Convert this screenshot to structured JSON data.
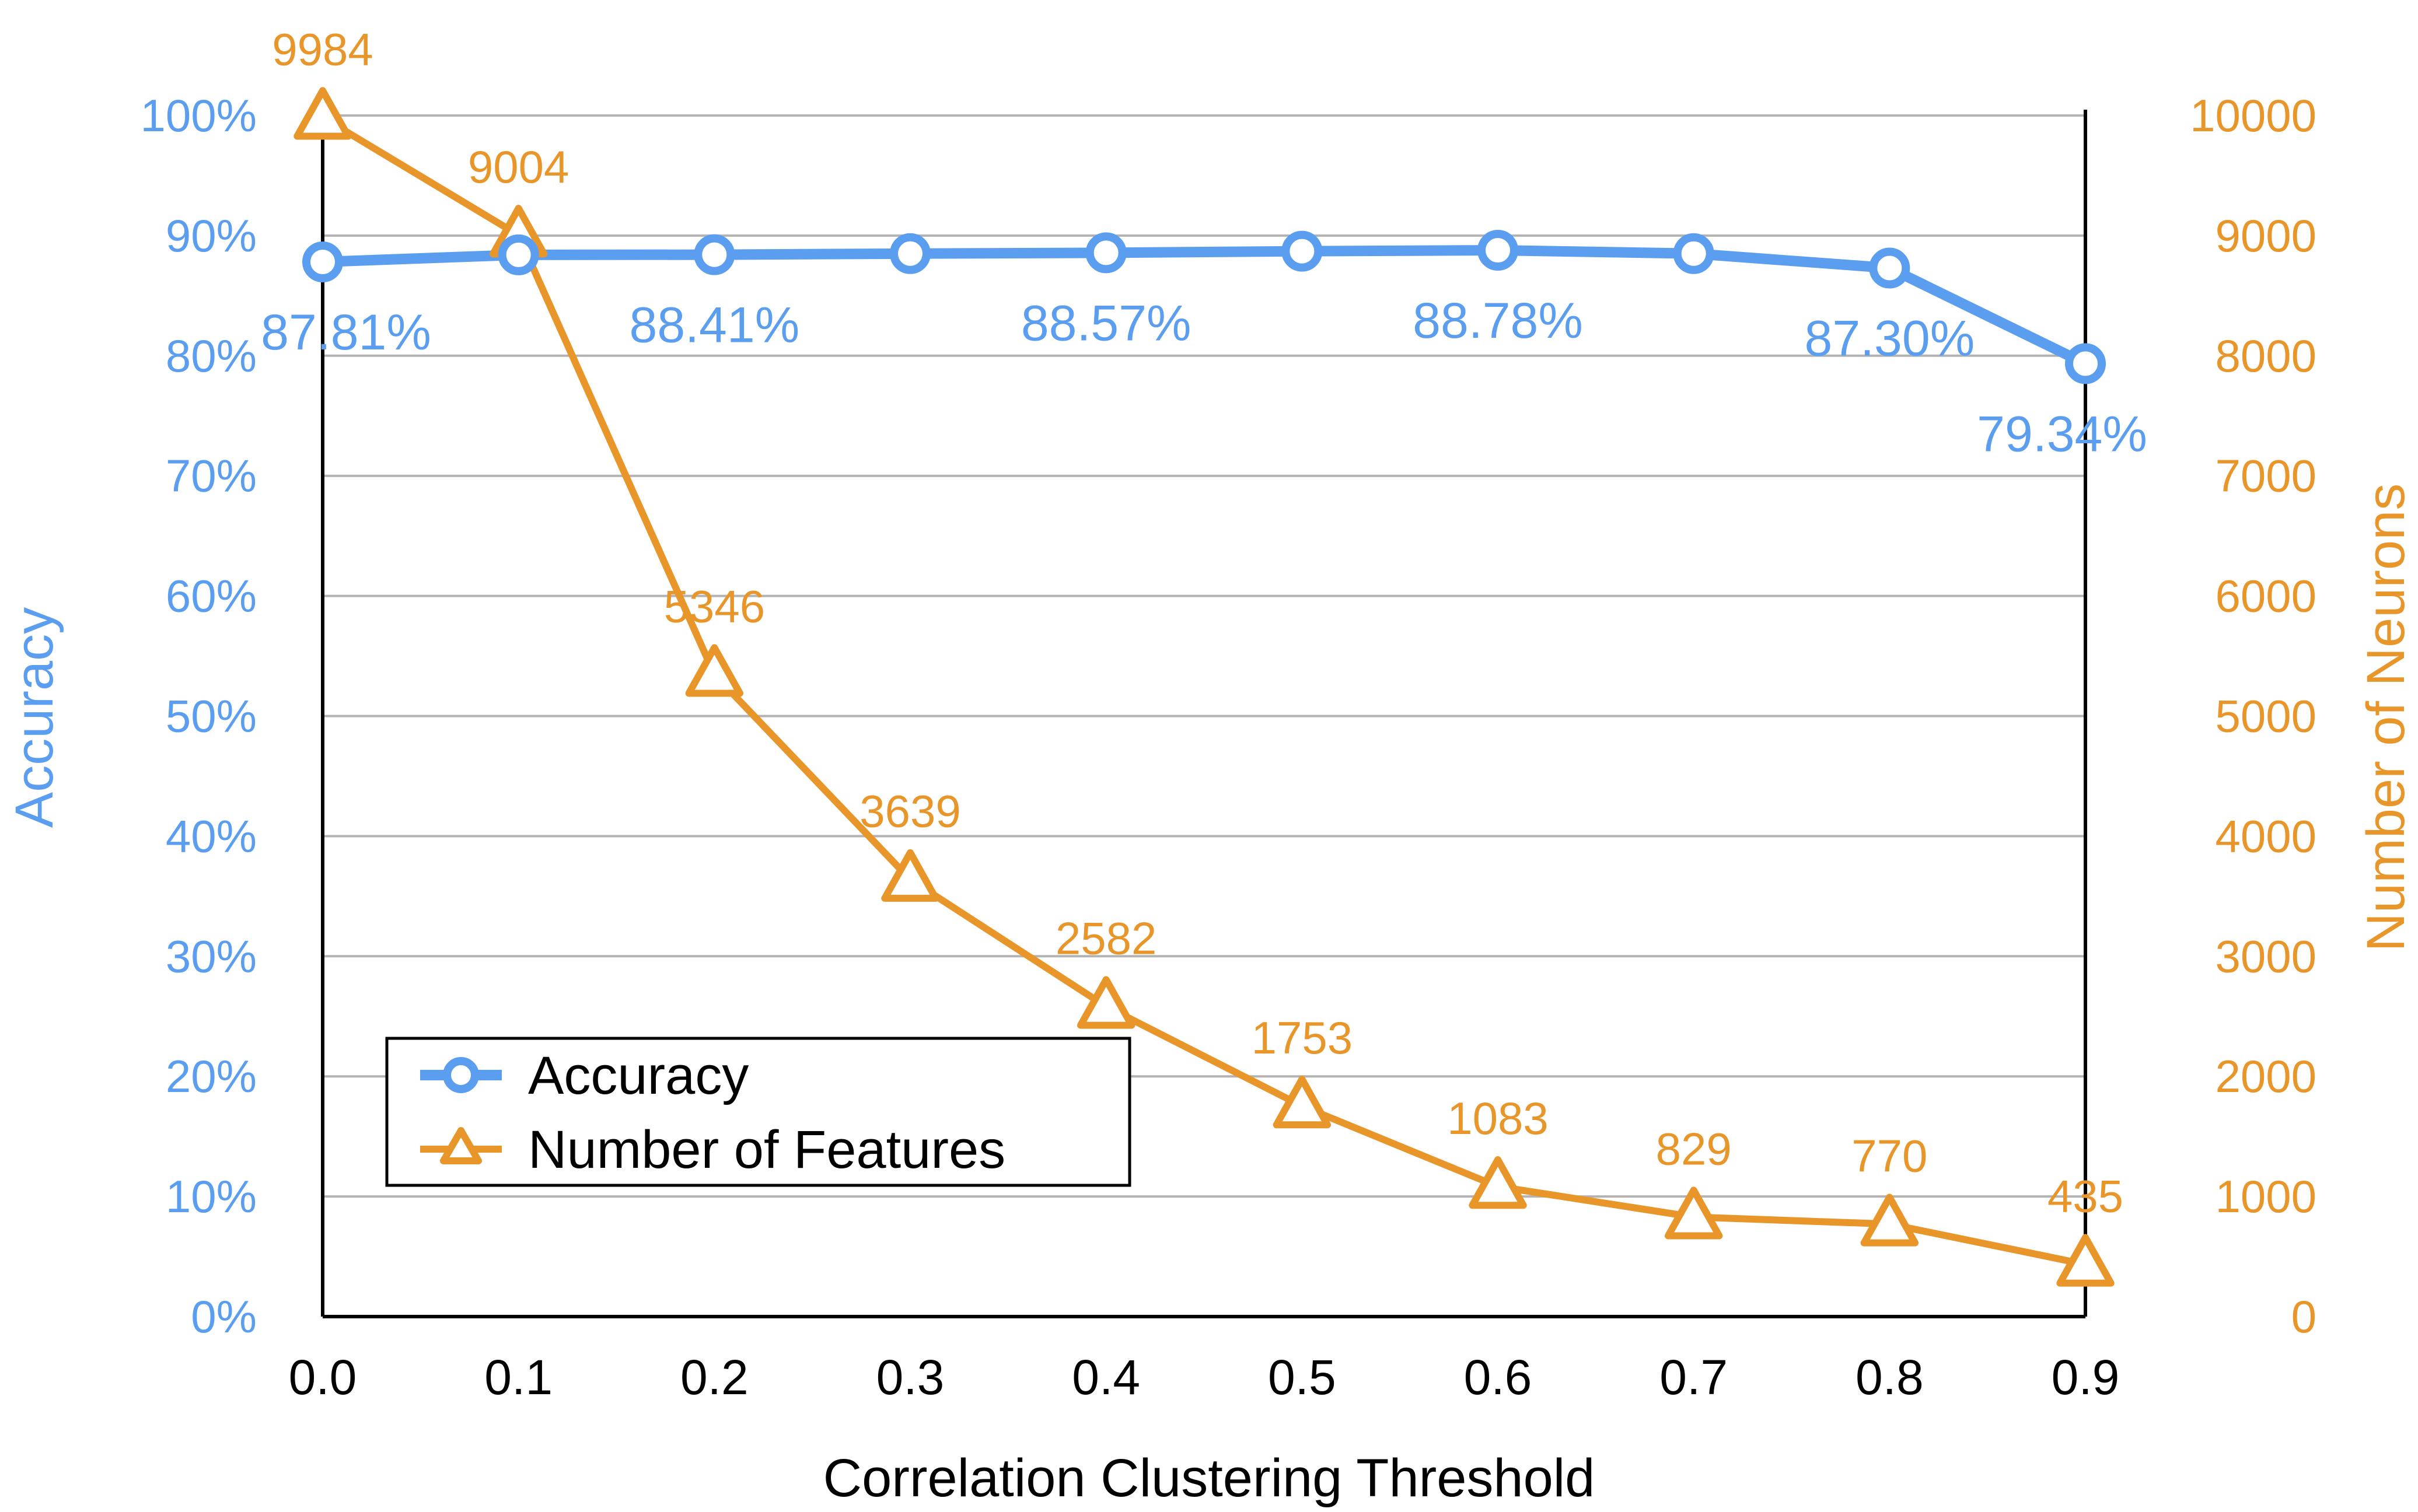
{
  "chart_data": {
    "type": "line",
    "xlabel": "Correlation Clustering Threshold",
    "ylabel": "Accuracy",
    "y2label": "Number of Neurons",
    "x": [
      "0.0",
      "0.1",
      "0.2",
      "0.3",
      "0.4",
      "0.5",
      "0.6",
      "0.7",
      "0.8",
      "0.9"
    ],
    "ylim": [
      0,
      100
    ],
    "y2lim": [
      0,
      10000
    ],
    "yticks": [
      "0%",
      "10%",
      "20%",
      "30%",
      "40%",
      "50%",
      "60%",
      "70%",
      "80%",
      "90%",
      "100%"
    ],
    "y2ticks": [
      "0",
      "1000",
      "2000",
      "3000",
      "4000",
      "5000",
      "6000",
      "7000",
      "8000",
      "9000",
      "10000"
    ],
    "grid": true,
    "legend_position": "bottom-left",
    "series": [
      {
        "name": "Accuracy",
        "axis": "left",
        "marker": "circle",
        "color": "#5b9ef0",
        "values": [
          87.81,
          88.4,
          88.41,
          88.5,
          88.57,
          88.7,
          88.78,
          88.5,
          87.3,
          79.34
        ],
        "labels": [
          "87.81%",
          "",
          "88.41%",
          "",
          "88.57%",
          "",
          "88.78%",
          "",
          "87.30%",
          "79.34%"
        ]
      },
      {
        "name": "Number of Features",
        "axis": "right",
        "marker": "triangle",
        "color": "#e8962a",
        "values": [
          9984,
          9004,
          5346,
          3639,
          2582,
          1753,
          1083,
          829,
          770,
          435
        ],
        "labels": [
          "9984",
          "9004",
          "5346",
          "3639",
          "2582",
          "1753",
          "1083",
          "829",
          "770",
          "435"
        ]
      }
    ]
  }
}
